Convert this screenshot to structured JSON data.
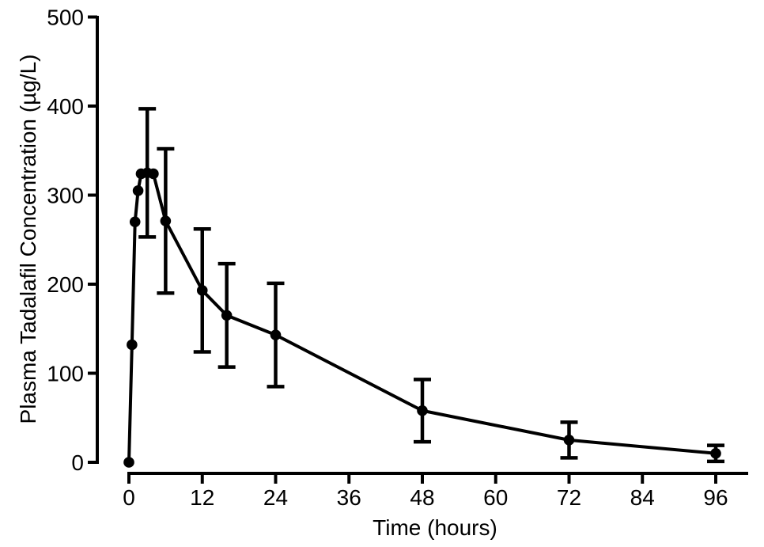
{
  "figure": {
    "background_color": "#ffffff",
    "foreground_color": "#000000"
  },
  "chart_data": {
    "type": "line",
    "title": "",
    "xlabel": "Time (hours)",
    "ylabel": "Plasma Tadalafil Concentration (µg/L)",
    "xlim": [
      0,
      96
    ],
    "ylim": [
      0,
      500
    ],
    "x_ticks": [
      0,
      12,
      24,
      36,
      48,
      60,
      72,
      84,
      96
    ],
    "y_ticks": [
      0,
      100,
      200,
      300,
      400,
      500
    ],
    "grid": false,
    "legend": "none",
    "marker": "filled-circle",
    "error_bars": "mean ± SD, capped",
    "line_color": "#000000",
    "marker_color": "#000000",
    "series": [
      {
        "name": "plasma-tadalafil-concentration",
        "points": [
          {
            "time": 0,
            "conc": 0,
            "sd": null
          },
          {
            "time": 0.5,
            "conc": 132,
            "sd": null
          },
          {
            "time": 1,
            "conc": 270,
            "sd": null
          },
          {
            "time": 1.5,
            "conc": 305,
            "sd": null
          },
          {
            "time": 2,
            "conc": 324,
            "sd": null
          },
          {
            "time": 3,
            "conc": 325,
            "sd": 72
          },
          {
            "time": 4,
            "conc": 324,
            "sd": null
          },
          {
            "time": 6,
            "conc": 271,
            "sd": 81
          },
          {
            "time": 12,
            "conc": 193,
            "sd": 69
          },
          {
            "time": 16,
            "conc": 165,
            "sd": 58
          },
          {
            "time": 24,
            "conc": 143,
            "sd": 58
          },
          {
            "time": 48,
            "conc": 58,
            "sd": 35
          },
          {
            "time": 72,
            "conc": 25,
            "sd": 20
          },
          {
            "time": 96,
            "conc": 10,
            "sd": 9
          }
        ]
      }
    ]
  }
}
